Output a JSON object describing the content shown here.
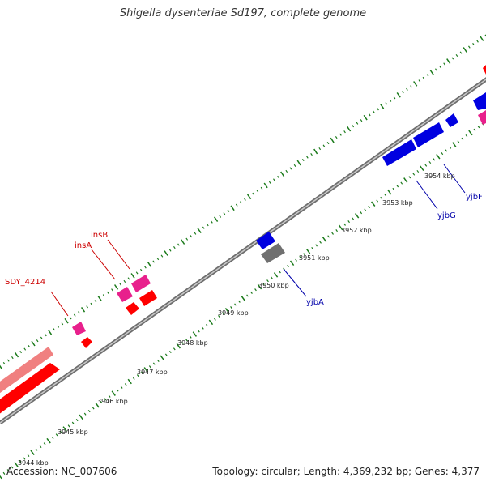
{
  "title": "Shigella dysenteriae Sd197, complete genome",
  "footer": {
    "accession": "Accession: NC_007606",
    "topology": "Topology: circular; Length: 4,369,232 bp; Genes: 4,377"
  },
  "colors": {
    "backbone": "#8c8c8c",
    "tick": "#1a7a1a",
    "gene_red": "#ff0000",
    "gene_pink": "#e8208c",
    "gene_salmon": "#f08080",
    "gene_blue": "#0000e0",
    "gene_grey": "#707070",
    "label_red": "#cc0000",
    "label_blue": "#0000aa"
  },
  "scale_labels": [
    "3944 kbp",
    "3945 kbp",
    "3946 kbp",
    "3947 kbp",
    "3948 kbp",
    "3949 kbp",
    "3950 kbp",
    "3951 kbp",
    "3952 kbp",
    "3953 kbp",
    "3954 kbp"
  ],
  "gene_labels": [
    "SDY_4214",
    "insA",
    "insB",
    "yjbA",
    "yjbG",
    "yjbF"
  ]
}
